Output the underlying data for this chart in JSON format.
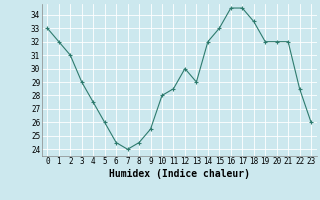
{
  "x": [
    0,
    1,
    2,
    3,
    4,
    5,
    6,
    7,
    8,
    9,
    10,
    11,
    12,
    13,
    14,
    15,
    16,
    17,
    18,
    19,
    20,
    21,
    22,
    23
  ],
  "y": [
    33,
    32,
    31,
    29,
    27.5,
    26,
    24.5,
    24,
    24.5,
    25.5,
    28,
    28.5,
    30,
    29,
    32,
    33,
    34.5,
    34.5,
    33.5,
    32,
    32,
    32,
    28.5,
    26
  ],
  "line_color": "#2e7b6e",
  "marker": "+",
  "marker_size": 3,
  "marker_lw": 0.8,
  "bg_color": "#cce8ee",
  "grid_color": "#ffffff",
  "xlabel": "Humidex (Indice chaleur)",
  "xlabel_fontsize": 7,
  "tick_fontsize": 5.5,
  "ylim": [
    23.5,
    34.8
  ],
  "xlim": [
    -0.5,
    23.5
  ],
  "yticks": [
    24,
    25,
    26,
    27,
    28,
    29,
    30,
    31,
    32,
    33,
    34
  ],
  "xticks": [
    0,
    1,
    2,
    3,
    4,
    5,
    6,
    7,
    8,
    9,
    10,
    11,
    12,
    13,
    14,
    15,
    16,
    17,
    18,
    19,
    20,
    21,
    22,
    23
  ],
  "xtick_labels": [
    "0",
    "1",
    "2",
    "3",
    "4",
    "5",
    "6",
    "7",
    "8",
    "9",
    "10",
    "11",
    "12",
    "13",
    "14",
    "15",
    "16",
    "17",
    "18",
    "19",
    "20",
    "21",
    "22",
    "23"
  ]
}
